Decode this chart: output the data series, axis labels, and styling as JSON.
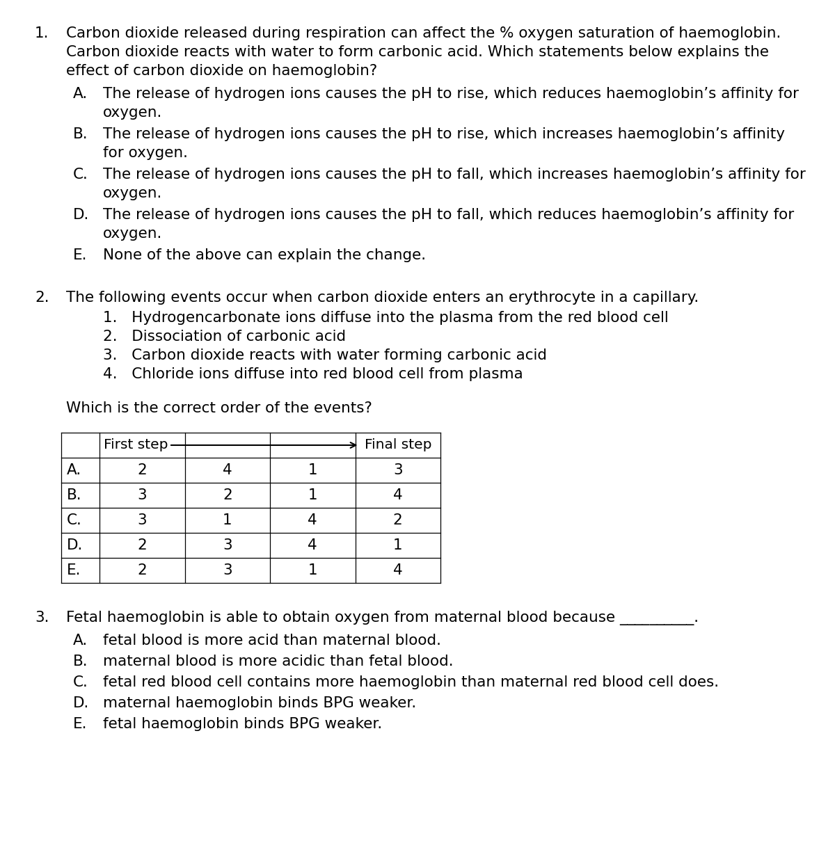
{
  "bg_color": "#ffffff",
  "text_color": "#000000",
  "q1_number": "1.",
  "q1_intro": [
    "Carbon dioxide released during respiration can affect the % oxygen saturation of haemoglobin.",
    "Carbon dioxide reacts with water to form carbonic acid. Which statements below explains the",
    "effect of carbon dioxide on haemoglobin?"
  ],
  "q1_options": [
    [
      "A.",
      "The release of hydrogen ions causes the pH to rise, which reduces haemoglobin’s affinity for",
      "oxygen."
    ],
    [
      "B.",
      "The release of hydrogen ions causes the pH to rise, which increases haemoglobin’s affinity",
      "for oxygen."
    ],
    [
      "C.",
      "The release of hydrogen ions causes the pH to fall, which increases haemoglobin’s affinity for",
      "oxygen."
    ],
    [
      "D.",
      "The release of hydrogen ions causes the pH to fall, which reduces haemoglobin’s affinity for",
      "oxygen."
    ],
    [
      "E.",
      "None of the above can explain the change.",
      ""
    ]
  ],
  "q2_number": "2.",
  "q2_intro": "The following events occur when carbon dioxide enters an erythrocyte in a capillary.",
  "q2_events": [
    "1.   Hydrogencarbonate ions diffuse into the plasma from the red blood cell",
    "2.   Dissociation of carbonic acid",
    "3.   Carbon dioxide reacts with water forming carbonic acid",
    "4.   Chloride ions diffuse into red blood cell from plasma"
  ],
  "q2_prompt": "Which is the correct order of the events?",
  "q2_header_left": "First step",
  "q2_header_right": "Final step",
  "q2_rows": [
    [
      "A.",
      "2",
      "4",
      "1",
      "3"
    ],
    [
      "B.",
      "3",
      "2",
      "1",
      "4"
    ],
    [
      "C.",
      "3",
      "1",
      "4",
      "2"
    ],
    [
      "D.",
      "2",
      "3",
      "4",
      "1"
    ],
    [
      "E.",
      "2",
      "3",
      "1",
      "4"
    ]
  ],
  "q3_number": "3.",
  "q3_intro": "Fetal haemoglobin is able to obtain oxygen from maternal blood because __________.",
  "q3_options": [
    [
      "A.",
      "fetal blood is more acid than maternal blood."
    ],
    [
      "B.",
      "maternal blood is more acidic than fetal blood."
    ],
    [
      "C.",
      "fetal red blood cell contains more haemoglobin than maternal red blood cell does."
    ],
    [
      "D.",
      "maternal haemoglobin binds BPG weaker."
    ],
    [
      "E.",
      "fetal haemoglobin binds BPG weaker."
    ]
  ]
}
